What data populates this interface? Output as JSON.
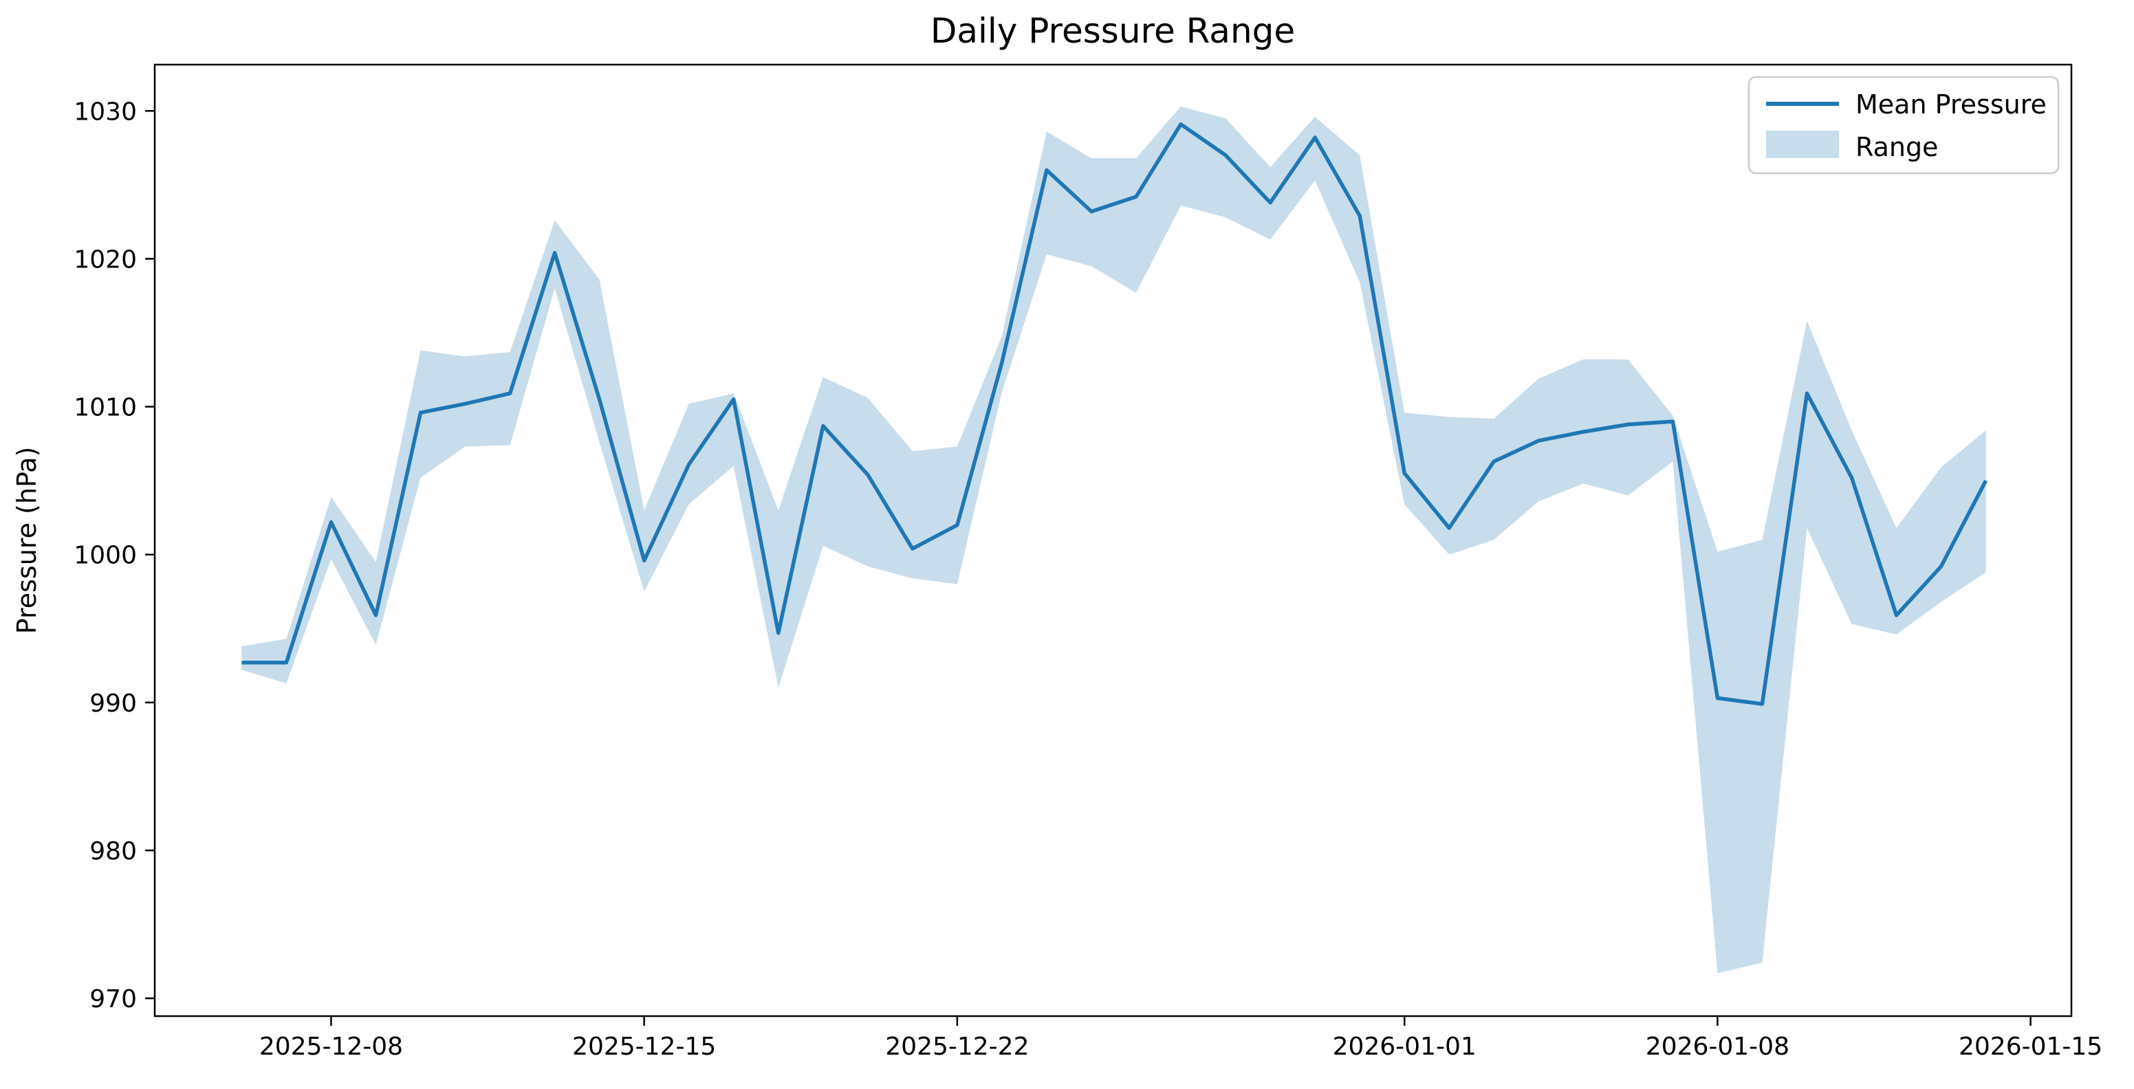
{
  "figure": {
    "title": "Daily Pressure Range",
    "ylabel": "Pressure (hPa)",
    "xlabel": ""
  },
  "legend": {
    "position": "upper right",
    "entries": [
      {
        "label": "Mean Pressure",
        "type": "line"
      },
      {
        "label": "Range",
        "type": "patch"
      }
    ]
  },
  "colors": {
    "line": "#1f77b4",
    "band": "rgba(31,119,180,0.25)",
    "spine": "#000000",
    "text": "#000000",
    "legend_border": "#cccccc",
    "background": "#ffffff"
  },
  "chart_data": {
    "type": "line",
    "title": "Daily Pressure Range",
    "xlabel": "",
    "ylabel": "Pressure (hPa)",
    "grid": false,
    "legend_position": "upper right",
    "x": [
      "2025-12-06",
      "2025-12-07",
      "2025-12-08",
      "2025-12-09",
      "2025-12-10",
      "2025-12-11",
      "2025-12-12",
      "2025-12-13",
      "2025-12-14",
      "2025-12-15",
      "2025-12-16",
      "2025-12-17",
      "2025-12-18",
      "2025-12-19",
      "2025-12-20",
      "2025-12-21",
      "2025-12-22",
      "2025-12-23",
      "2025-12-24",
      "2025-12-25",
      "2025-12-26",
      "2025-12-27",
      "2025-12-28",
      "2025-12-29",
      "2025-12-30",
      "2025-12-31",
      "2026-01-01",
      "2026-01-02",
      "2026-01-03",
      "2026-01-04",
      "2026-01-05",
      "2026-01-06",
      "2026-01-07",
      "2026-01-08",
      "2026-01-09",
      "2026-01-10",
      "2026-01-11",
      "2026-01-12",
      "2026-01-13",
      "2026-01-14"
    ],
    "series": [
      {
        "name": "Mean Pressure",
        "values": [
          992.7,
          992.7,
          1002.2,
          995.9,
          1009.6,
          1010.2,
          1010.9,
          1020.4,
          1010.5,
          999.6,
          1006.1,
          1010.5,
          994.7,
          1008.7,
          1005.4,
          1000.4,
          1002.0,
          1013.0,
          1026.0,
          1023.2,
          1024.2,
          1029.1,
          1027.0,
          1023.8,
          1028.2,
          1022.9,
          1005.5,
          1001.8,
          1006.3,
          1007.7,
          1008.3,
          1008.8,
          1009.0,
          990.3,
          989.9,
          1010.9,
          1005.2,
          995.9,
          999.2,
          1005.0
        ]
      },
      {
        "name": "Range lower",
        "values": [
          992.2,
          991.3,
          999.7,
          993.9,
          1005.2,
          1007.3,
          1007.4,
          1018.0,
          1007.6,
          997.5,
          1003.4,
          1006.0,
          991.0,
          1000.6,
          999.2,
          998.4,
          998.0,
          1011.0,
          1020.3,
          1019.5,
          1017.7,
          1023.6,
          1022.8,
          1021.3,
          1025.3,
          1018.4,
          1003.4,
          1000.0,
          1001.0,
          1003.6,
          1004.8,
          1004.0,
          1006.3,
          971.7,
          972.4,
          1001.8,
          995.3,
          994.6,
          996.8,
          998.8
        ]
      },
      {
        "name": "Range upper",
        "values": [
          993.8,
          994.3,
          1003.9,
          999.5,
          1013.8,
          1013.4,
          1013.7,
          1022.6,
          1018.6,
          1003.0,
          1010.2,
          1010.9,
          1003.0,
          1012.0,
          1010.6,
          1007.0,
          1007.3,
          1014.8,
          1028.6,
          1026.8,
          1026.8,
          1030.3,
          1029.5,
          1026.2,
          1029.6,
          1027.0,
          1009.6,
          1009.3,
          1009.2,
          1011.9,
          1013.2,
          1013.2,
          1009.4,
          1000.2,
          1001.0,
          1015.8,
          1008.4,
          1001.8,
          1005.9,
          1008.4
        ]
      }
    ],
    "y_ticks": [
      970,
      980,
      990,
      1000,
      1010,
      1020,
      1030
    ],
    "x_ticks": [
      {
        "label": "2025-12-08",
        "index": 2
      },
      {
        "label": "2025-12-15",
        "index": 9
      },
      {
        "label": "2025-12-22",
        "index": 16
      },
      {
        "label": "2026-01-01",
        "index": 26
      },
      {
        "label": "2026-01-08",
        "index": 33
      },
      {
        "label": "2026-01-15",
        "index": 40
      }
    ],
    "ylim": [
      968.8,
      1033.1
    ]
  }
}
